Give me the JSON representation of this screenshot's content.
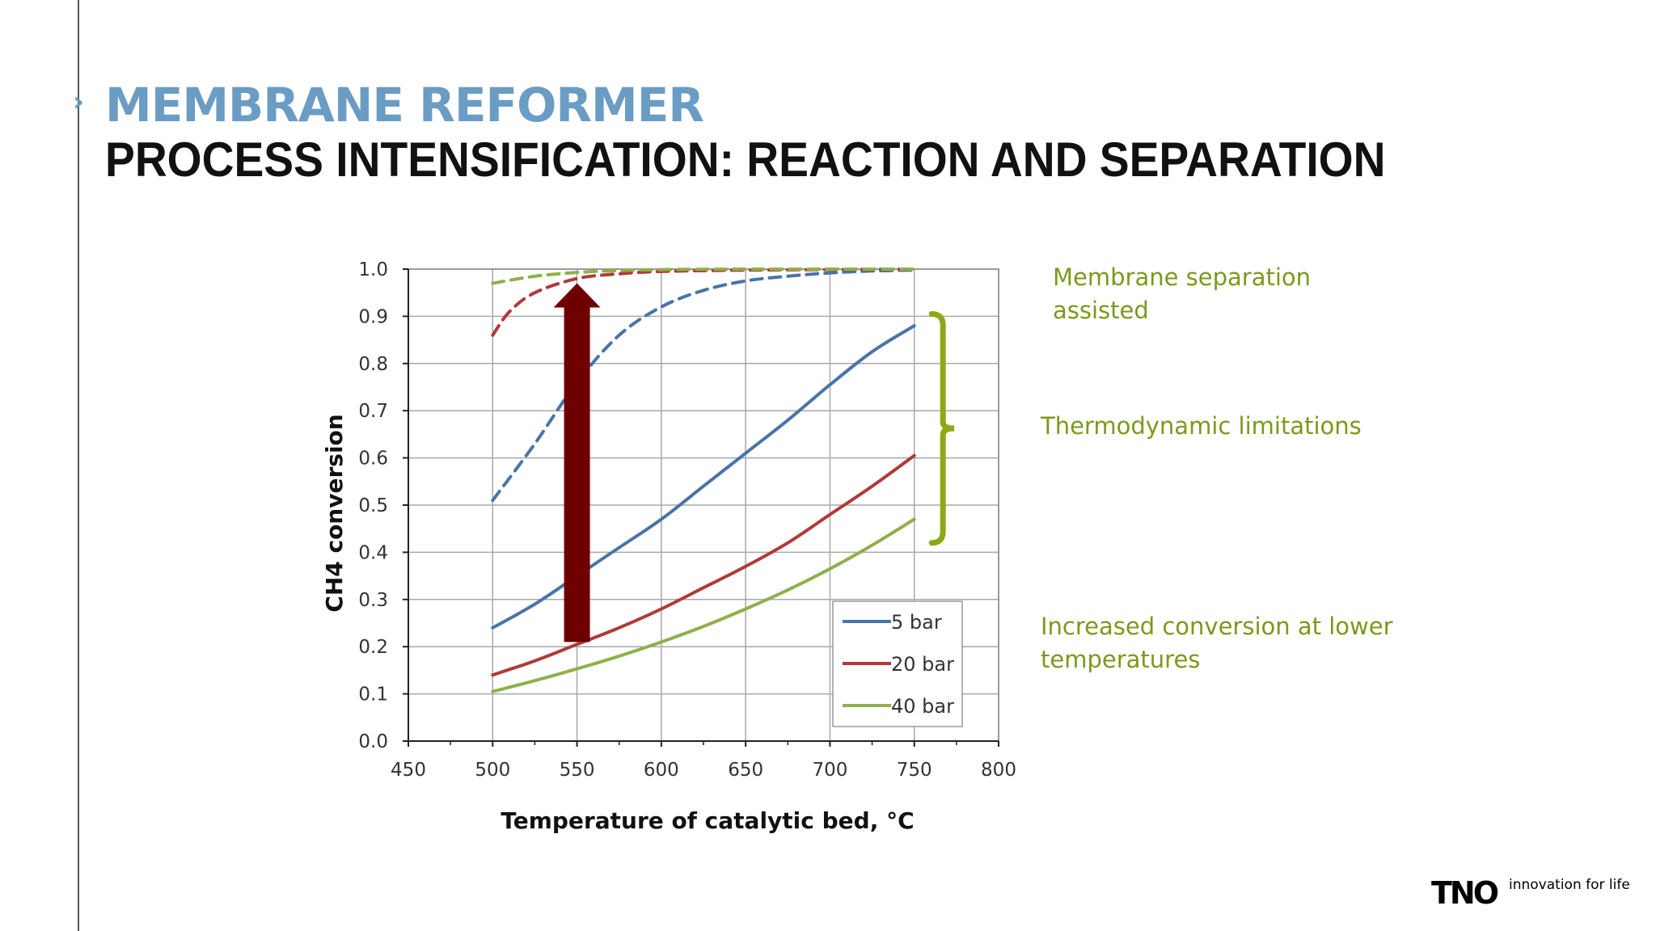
{
  "slide": {
    "title": "MEMBRANE REFORMER",
    "subtitle": "PROCESS INTENSIFICATION: REACTION AND SEPARATION",
    "annotations": {
      "membrane": "Membrane separation assisted",
      "thermo": "Thermodynamic limitations",
      "increased": "Increased conversion at lower temperatures"
    },
    "logo": {
      "text": "TNO",
      "tagline": "innovation for life"
    }
  },
  "colors": {
    "accent_blue": "#6a9cc4",
    "annotation_green": "#7a9a1a",
    "bracket_green": "#8aaa14",
    "arrow": "#6e0000"
  },
  "chart_data": {
    "type": "line",
    "xlabel": "Temperature of catalytic bed, °C",
    "ylabel": "CH4 conversion",
    "xlim": [
      450,
      800
    ],
    "ylim": [
      0,
      1.0
    ],
    "xticks": [
      450,
      500,
      550,
      600,
      650,
      700,
      750,
      800
    ],
    "yticks": [
      0.0,
      0.1,
      0.2,
      0.3,
      0.4,
      0.5,
      0.6,
      0.7,
      0.8,
      0.9,
      1.0
    ],
    "grid": true,
    "legend": "bottom-right",
    "series": [
      {
        "name": "5 bar",
        "color": "#4a74a8",
        "style": "solid",
        "x": [
          500,
          525,
          550,
          575,
          600,
          625,
          650,
          675,
          700,
          725,
          750
        ],
        "y": [
          0.24,
          0.29,
          0.35,
          0.41,
          0.47,
          0.54,
          0.61,
          0.68,
          0.755,
          0.825,
          0.88
        ]
      },
      {
        "name": "20 bar",
        "color": "#b03a3a",
        "style": "solid",
        "x": [
          500,
          525,
          550,
          575,
          600,
          625,
          650,
          675,
          700,
          725,
          750
        ],
        "y": [
          0.14,
          0.17,
          0.205,
          0.24,
          0.28,
          0.325,
          0.37,
          0.42,
          0.48,
          0.54,
          0.605
        ]
      },
      {
        "name": "40 bar",
        "color": "#8fb04a",
        "style": "solid",
        "x": [
          500,
          525,
          550,
          575,
          600,
          625,
          650,
          675,
          700,
          725,
          750
        ],
        "y": [
          0.105,
          0.128,
          0.153,
          0.18,
          0.21,
          0.243,
          0.28,
          0.32,
          0.365,
          0.415,
          0.47
        ]
      },
      {
        "color": "#4a74a8",
        "style": "dashed",
        "x": [
          500,
          525,
          550,
          575,
          600,
          625,
          650,
          675,
          700,
          725,
          750
        ],
        "y": [
          0.51,
          0.63,
          0.76,
          0.86,
          0.92,
          0.955,
          0.975,
          0.985,
          0.992,
          0.996,
          0.998
        ]
      },
      {
        "color": "#b03a3a",
        "style": "dashed",
        "x": [
          500,
          510,
          525,
          550,
          575,
          600,
          650,
          700,
          750
        ],
        "y": [
          0.86,
          0.91,
          0.95,
          0.98,
          0.99,
          0.995,
          0.998,
          0.999,
          1.0
        ]
      },
      {
        "color": "#8fb04a",
        "style": "dashed",
        "x": [
          500,
          525,
          550,
          575,
          600,
          650,
          700,
          750
        ],
        "y": [
          0.97,
          0.985,
          0.993,
          0.997,
          0.999,
          1.0,
          1.0,
          1.0
        ]
      }
    ],
    "arrow": {
      "x": 550,
      "y_from": 0.21,
      "y_to": 0.97
    },
    "bracket": {
      "x": 767,
      "y_from": 0.42,
      "y_to": 0.905
    }
  }
}
